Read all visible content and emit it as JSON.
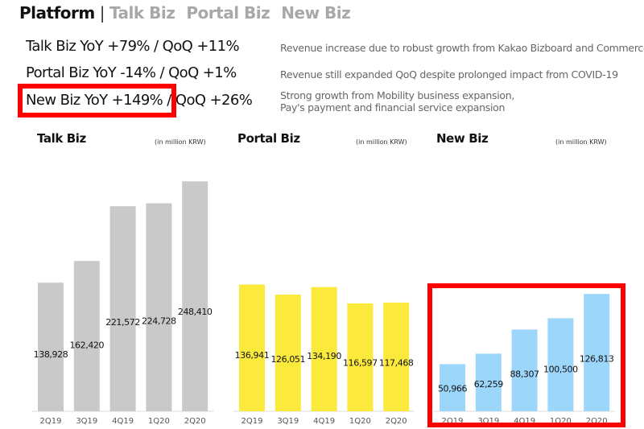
{
  "header": {
    "title": "Platform",
    "separator": "|",
    "tabs": [
      "Talk Biz",
      "Portal Biz",
      "New Biz"
    ]
  },
  "kpis": [
    {
      "label": "Talk Biz  YoY +79% / QoQ +11%",
      "desc": [
        "Revenue increase due to robust growth from Kakao Bizboard and Commerce"
      ]
    },
    {
      "label": "Portal Biz  YoY -14% / QoQ +1%",
      "desc": [
        "Revenue still expanded QoQ despite prolonged impact from COVID-19"
      ]
    },
    {
      "label": "New Biz  YoY +149% / QoQ +26%",
      "desc": [
        "Strong growth from Mobility business expansion,",
        "Pay's payment and financial service expansion"
      ]
    }
  ],
  "chart_data": [
    {
      "type": "bar",
      "title": "Talk Biz",
      "unit": "(in million KRW)",
      "categories": [
        "2Q19",
        "3Q19",
        "4Q19",
        "1Q20",
        "2Q20"
      ],
      "values": [
        138928,
        162420,
        221572,
        224728,
        248410
      ],
      "labels": [
        "138,928",
        "162,420",
        "221,572",
        "224,728",
        "248,410"
      ],
      "color": "#c9c9c9"
    },
    {
      "type": "bar",
      "title": "Portal Biz",
      "unit": "(in million KRW)",
      "categories": [
        "2Q19",
        "3Q19",
        "4Q19",
        "1Q20",
        "2Q20"
      ],
      "values": [
        136941,
        126051,
        134190,
        116597,
        117468
      ],
      "labels": [
        "136,941",
        "126,051",
        "134,190",
        "116,597",
        "117,468"
      ],
      "color": "#fbe93c"
    },
    {
      "type": "bar",
      "title": "New Biz",
      "unit": "(in million KRW)",
      "categories": [
        "2Q19",
        "3Q19",
        "4Q19",
        "1Q20",
        "2Q20"
      ],
      "values": [
        50966,
        62259,
        88307,
        100500,
        126813
      ],
      "labels": [
        "50,966",
        "62,259",
        "88,307",
        "100,500",
        "126,813"
      ],
      "color": "#9dd6fb"
    }
  ],
  "highlight_color": "#ff0000"
}
